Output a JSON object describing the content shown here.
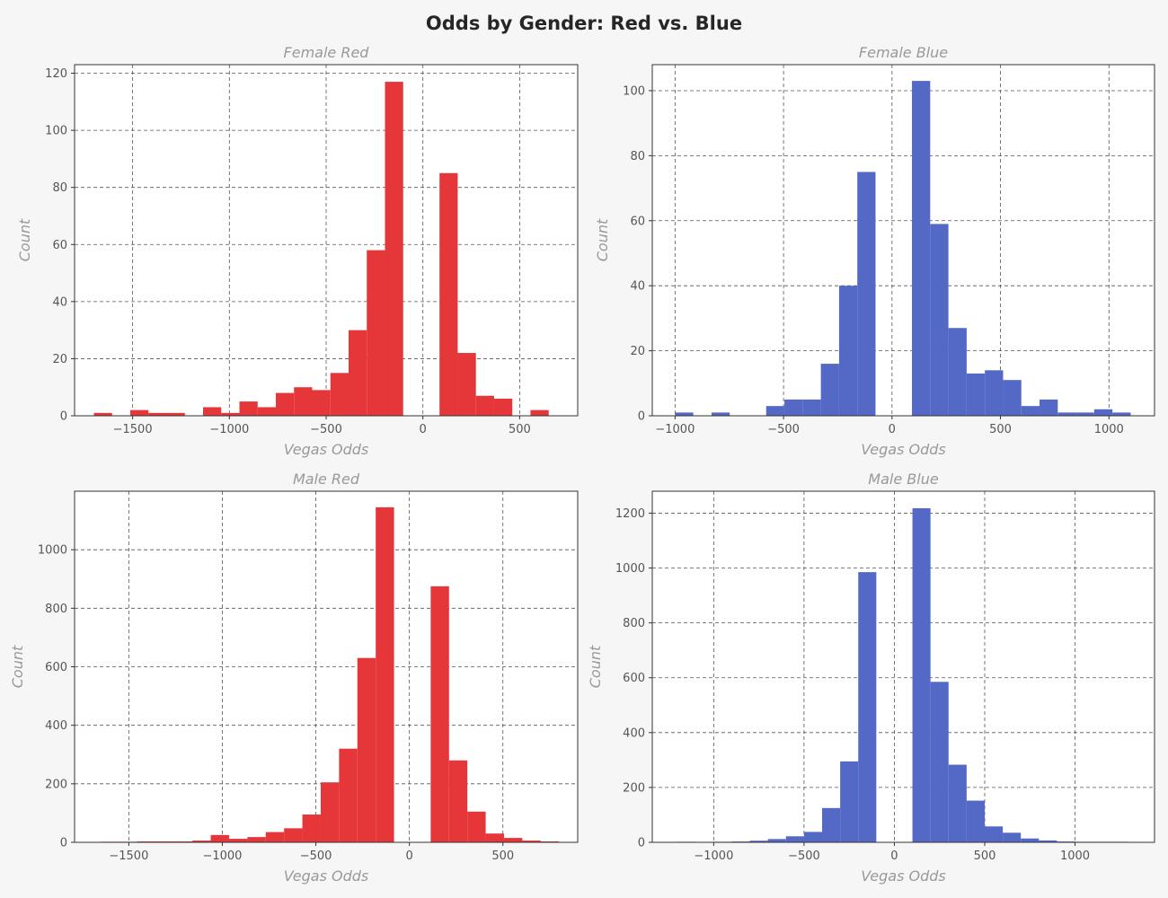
{
  "figure_title": "Odds by Gender: Red vs. Blue",
  "colors": {
    "red": "#e5363a",
    "blue": "#5469c6",
    "axis_text": "#999999",
    "tick_text": "#555555",
    "grid": "#555555",
    "background": "#f6f6f6"
  },
  "chart_data": [
    {
      "type": "bar",
      "title": "Female Red",
      "xlabel": "Vegas Odds",
      "ylabel": "Count",
      "color": "red",
      "grid": true,
      "xlim": [
        -1800,
        800
      ],
      "ylim": [
        0,
        123
      ],
      "xticks": [
        -1500,
        -1000,
        -500,
        0,
        500
      ],
      "yticks": [
        0,
        20,
        40,
        60,
        80,
        100,
        120
      ],
      "bins": [
        {
          "x0": -1700,
          "x1": -1606,
          "count": 1
        },
        {
          "x0": -1606,
          "x1": -1512,
          "count": 0
        },
        {
          "x0": -1512,
          "x1": -1418,
          "count": 2
        },
        {
          "x0": -1418,
          "x1": -1324,
          "count": 1
        },
        {
          "x0": -1324,
          "x1": -1230,
          "count": 1
        },
        {
          "x0": -1230,
          "x1": -1136,
          "count": 0
        },
        {
          "x0": -1136,
          "x1": -1042,
          "count": 3
        },
        {
          "x0": -1042,
          "x1": -948,
          "count": 1
        },
        {
          "x0": -948,
          "x1": -854,
          "count": 5
        },
        {
          "x0": -854,
          "x1": -760,
          "count": 3
        },
        {
          "x0": -760,
          "x1": -666,
          "count": 8
        },
        {
          "x0": -666,
          "x1": -572,
          "count": 10
        },
        {
          "x0": -572,
          "x1": -478,
          "count": 9
        },
        {
          "x0": -478,
          "x1": -384,
          "count": 15
        },
        {
          "x0": -384,
          "x1": -290,
          "count": 30
        },
        {
          "x0": -290,
          "x1": -196,
          "count": 58
        },
        {
          "x0": -196,
          "x1": -102,
          "count": 117
        },
        {
          "x0": -102,
          "x1": -8,
          "count": 0
        },
        {
          "x0": -8,
          "x1": 86,
          "count": 0
        },
        {
          "x0": 86,
          "x1": 180,
          "count": 85
        },
        {
          "x0": 180,
          "x1": 274,
          "count": 22
        },
        {
          "x0": 274,
          "x1": 368,
          "count": 7
        },
        {
          "x0": 368,
          "x1": 462,
          "count": 6
        },
        {
          "x0": 462,
          "x1": 556,
          "count": 0
        },
        {
          "x0": 556,
          "x1": 650,
          "count": 2
        }
      ]
    },
    {
      "type": "bar",
      "title": "Female Blue",
      "xlabel": "Vegas Odds",
      "ylabel": "Count",
      "color": "blue",
      "grid": true,
      "xlim": [
        -1105,
        1210
      ],
      "ylim": [
        0,
        108
      ],
      "xticks": [
        -1000,
        -500,
        0,
        500,
        1000
      ],
      "yticks": [
        0,
        20,
        40,
        60,
        80,
        100
      ],
      "bins": [
        {
          "x0": -1000,
          "x1": -916,
          "count": 1
        },
        {
          "x0": -916,
          "x1": -832,
          "count": 0
        },
        {
          "x0": -832,
          "x1": -748,
          "count": 1
        },
        {
          "x0": -748,
          "x1": -664,
          "count": 0
        },
        {
          "x0": -664,
          "x1": -580,
          "count": 0
        },
        {
          "x0": -580,
          "x1": -496,
          "count": 3
        },
        {
          "x0": -496,
          "x1": -412,
          "count": 5
        },
        {
          "x0": -412,
          "x1": -328,
          "count": 5
        },
        {
          "x0": -328,
          "x1": -244,
          "count": 16
        },
        {
          "x0": -244,
          "x1": -160,
          "count": 40
        },
        {
          "x0": -160,
          "x1": -76,
          "count": 75
        },
        {
          "x0": -76,
          "x1": 8,
          "count": 0
        },
        {
          "x0": 8,
          "x1": 92,
          "count": 0
        },
        {
          "x0": 92,
          "x1": 176,
          "count": 103
        },
        {
          "x0": 176,
          "x1": 260,
          "count": 59
        },
        {
          "x0": 260,
          "x1": 344,
          "count": 27
        },
        {
          "x0": 344,
          "x1": 428,
          "count": 13
        },
        {
          "x0": 428,
          "x1": 512,
          "count": 14
        },
        {
          "x0": 512,
          "x1": 596,
          "count": 11
        },
        {
          "x0": 596,
          "x1": 680,
          "count": 3
        },
        {
          "x0": 680,
          "x1": 764,
          "count": 5
        },
        {
          "x0": 764,
          "x1": 848,
          "count": 1
        },
        {
          "x0": 848,
          "x1": 932,
          "count": 1
        },
        {
          "x0": 932,
          "x1": 1016,
          "count": 2
        },
        {
          "x0": 1016,
          "x1": 1100,
          "count": 1
        }
      ]
    },
    {
      "type": "bar",
      "title": "Male Red",
      "xlabel": "Vegas Odds",
      "ylabel": "Count",
      "color": "red",
      "grid": true,
      "xlim": [
        -1790,
        900
      ],
      "ylim": [
        0,
        1200
      ],
      "xticks": [
        -1500,
        -1000,
        -500,
        0,
        500
      ],
      "yticks": [
        0,
        200,
        400,
        600,
        800,
        1000
      ],
      "bins": [
        {
          "x0": -1650,
          "x1": -1552,
          "count": 2
        },
        {
          "x0": -1552,
          "x1": -1454,
          "count": 2
        },
        {
          "x0": -1454,
          "x1": -1356,
          "count": 3
        },
        {
          "x0": -1356,
          "x1": -1258,
          "count": 3
        },
        {
          "x0": -1258,
          "x1": -1160,
          "count": 3
        },
        {
          "x0": -1160,
          "x1": -1062,
          "count": 6
        },
        {
          "x0": -1062,
          "x1": -964,
          "count": 25
        },
        {
          "x0": -964,
          "x1": -866,
          "count": 12
        },
        {
          "x0": -866,
          "x1": -768,
          "count": 18
        },
        {
          "x0": -768,
          "x1": -670,
          "count": 35
        },
        {
          "x0": -670,
          "x1": -572,
          "count": 48
        },
        {
          "x0": -572,
          "x1": -474,
          "count": 95
        },
        {
          "x0": -474,
          "x1": -376,
          "count": 205
        },
        {
          "x0": -376,
          "x1": -278,
          "count": 320
        },
        {
          "x0": -278,
          "x1": -180,
          "count": 630
        },
        {
          "x0": -180,
          "x1": -82,
          "count": 1145
        },
        {
          "x0": -82,
          "x1": 16,
          "count": 0
        },
        {
          "x0": 16,
          "x1": 114,
          "count": 0
        },
        {
          "x0": 114,
          "x1": 212,
          "count": 875
        },
        {
          "x0": 212,
          "x1": 310,
          "count": 280
        },
        {
          "x0": 310,
          "x1": 408,
          "count": 105
        },
        {
          "x0": 408,
          "x1": 506,
          "count": 30
        },
        {
          "x0": 506,
          "x1": 604,
          "count": 15
        },
        {
          "x0": 604,
          "x1": 702,
          "count": 6
        },
        {
          "x0": 702,
          "x1": 800,
          "count": 3
        }
      ]
    },
    {
      "type": "bar",
      "title": "Male Blue",
      "xlabel": "Vegas Odds",
      "ylabel": "Count",
      "color": "blue",
      "grid": true,
      "xlim": [
        -1340,
        1440
      ],
      "ylim": [
        0,
        1280
      ],
      "xticks": [
        -1000,
        -500,
        0,
        500,
        1000
      ],
      "yticks": [
        0,
        200,
        400,
        600,
        800,
        1000,
        1200
      ],
      "bins": [
        {
          "x0": -1200,
          "x1": -1100,
          "count": 2
        },
        {
          "x0": -1100,
          "x1": -1000,
          "count": 0
        },
        {
          "x0": -1000,
          "x1": -900,
          "count": 2
        },
        {
          "x0": -900,
          "x1": -800,
          "count": 3
        },
        {
          "x0": -800,
          "x1": -700,
          "count": 6
        },
        {
          "x0": -700,
          "x1": -600,
          "count": 12
        },
        {
          "x0": -600,
          "x1": -500,
          "count": 22
        },
        {
          "x0": -500,
          "x1": -400,
          "count": 38
        },
        {
          "x0": -400,
          "x1": -300,
          "count": 125
        },
        {
          "x0": -300,
          "x1": -200,
          "count": 295
        },
        {
          "x0": -200,
          "x1": -100,
          "count": 985
        },
        {
          "x0": -100,
          "x1": 0,
          "count": 0
        },
        {
          "x0": 0,
          "x1": 100,
          "count": 0
        },
        {
          "x0": 100,
          "x1": 200,
          "count": 1218
        },
        {
          "x0": 200,
          "x1": 300,
          "count": 585
        },
        {
          "x0": 300,
          "x1": 400,
          "count": 283
        },
        {
          "x0": 400,
          "x1": 500,
          "count": 152
        },
        {
          "x0": 500,
          "x1": 600,
          "count": 58
        },
        {
          "x0": 600,
          "x1": 700,
          "count": 35
        },
        {
          "x0": 700,
          "x1": 800,
          "count": 14
        },
        {
          "x0": 800,
          "x1": 900,
          "count": 7
        },
        {
          "x0": 900,
          "x1": 1000,
          "count": 3
        },
        {
          "x0": 1000,
          "x1": 1100,
          "count": 2
        },
        {
          "x0": 1100,
          "x1": 1200,
          "count": 2
        },
        {
          "x0": 1200,
          "x1": 1300,
          "count": 2
        }
      ]
    }
  ]
}
